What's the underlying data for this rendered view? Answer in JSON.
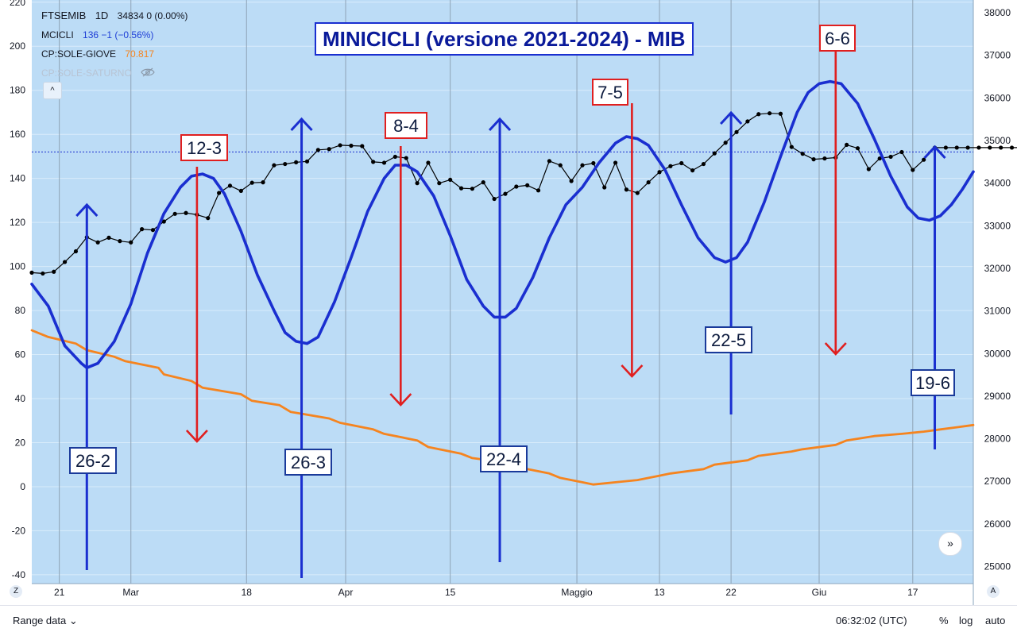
{
  "legend": {
    "symbol": "FTSEMIB",
    "timeframe": "1D",
    "symbol_values": "34834 0 (0.00%)",
    "mcicli_name": "MCICLI",
    "mcicli_values": "136 −1 (−0.56%)",
    "giove_name": "CP:SOLE-GIOVE",
    "giove_value": "70.817",
    "saturno_name": "CP:SOLE-SATURNO",
    "collapse_glyph": "^",
    "eye_icon": "eye-off-icon"
  },
  "title": "MINICICLI (versione 2021-2024) - MIB",
  "colors": {
    "background": "#bcdcf6",
    "blue_cycle": "#1a2fd0",
    "orange": "#f5841f",
    "price": "#000000",
    "red_arrow": "#e01f1f",
    "blue_arrow": "#1a2fd0"
  },
  "bottom_bar": {
    "range_label": "Range data",
    "time": "06:32:02 (UTC)",
    "percent": "%",
    "log": "log",
    "auto": "auto",
    "scroll_icon": "double-chevron-right-icon",
    "z_label": "Z",
    "a_label": "A"
  },
  "chart_data": {
    "type": "line",
    "title": "MINICICLI (versione 2021-2024) - MIB",
    "x_tick_labels": [
      "21",
      "Mar",
      "18",
      "Apr",
      "15",
      "Maggio",
      "13",
      "22",
      "Giu",
      "17"
    ],
    "left_axis": {
      "ticks": [
        -40,
        -20,
        0,
        20,
        40,
        60,
        80,
        100,
        120,
        140,
        160,
        180,
        200,
        220
      ],
      "ylim": [
        -44,
        221
      ]
    },
    "right_axis": {
      "ticks": [
        25000,
        26000,
        27000,
        28000,
        29000,
        30000,
        31000,
        32000,
        33000,
        34000,
        35000,
        36000,
        37000,
        38000
      ],
      "ylim": [
        24600,
        38300
      ]
    },
    "last_price_level": 152,
    "series": [
      {
        "name": "MCICLI",
        "axis": "left",
        "color": "#1a2fd0",
        "points": [
          [
            0,
            92
          ],
          [
            3,
            82
          ],
          [
            6,
            64
          ],
          [
            9,
            56
          ],
          [
            10,
            54
          ],
          [
            12,
            56
          ],
          [
            15,
            66
          ],
          [
            18,
            83
          ],
          [
            21,
            106
          ],
          [
            24,
            124
          ],
          [
            27,
            136
          ],
          [
            29,
            141
          ],
          [
            31,
            142
          ],
          [
            33,
            140
          ],
          [
            35,
            133
          ],
          [
            38,
            116
          ],
          [
            41,
            96
          ],
          [
            44,
            80
          ],
          [
            46,
            70
          ],
          [
            48,
            66
          ],
          [
            50,
            65
          ],
          [
            52,
            68
          ],
          [
            55,
            84
          ],
          [
            58,
            104
          ],
          [
            61,
            125
          ],
          [
            64,
            140
          ],
          [
            66,
            146
          ],
          [
            68,
            146
          ],
          [
            70,
            143
          ],
          [
            73,
            132
          ],
          [
            76,
            114
          ],
          [
            79,
            94
          ],
          [
            82,
            82
          ],
          [
            84,
            77
          ],
          [
            86,
            77
          ],
          [
            88,
            81
          ],
          [
            91,
            95
          ],
          [
            94,
            113
          ],
          [
            97,
            128
          ],
          [
            100,
            136
          ],
          [
            103,
            147
          ],
          [
            106,
            156
          ],
          [
            108,
            159
          ],
          [
            110,
            158
          ],
          [
            112,
            155
          ],
          [
            115,
            144
          ],
          [
            118,
            128
          ],
          [
            121,
            113
          ],
          [
            124,
            104
          ],
          [
            126,
            102
          ],
          [
            128,
            104
          ],
          [
            130,
            111
          ],
          [
            133,
            129
          ],
          [
            136,
            150
          ],
          [
            139,
            170
          ],
          [
            141,
            179
          ],
          [
            143,
            183
          ],
          [
            145,
            184
          ],
          [
            147,
            183
          ],
          [
            150,
            174
          ],
          [
            153,
            158
          ],
          [
            156,
            141
          ],
          [
            159,
            127
          ],
          [
            161,
            122
          ],
          [
            163,
            121
          ],
          [
            165,
            123
          ],
          [
            167,
            128
          ],
          [
            169,
            135
          ],
          [
            171,
            143
          ]
        ]
      },
      {
        "name": "CP:SOLE-GIOVE",
        "axis": "left",
        "color": "#f5841f",
        "points": [
          [
            0,
            71
          ],
          [
            3,
            68
          ],
          [
            8,
            65
          ],
          [
            10,
            62
          ],
          [
            15,
            59
          ],
          [
            17,
            57
          ],
          [
            23,
            54
          ],
          [
            24,
            51
          ],
          [
            29,
            48
          ],
          [
            31,
            45
          ],
          [
            38,
            42
          ],
          [
            40,
            39
          ],
          [
            45,
            37
          ],
          [
            47,
            34
          ],
          [
            54,
            31
          ],
          [
            56,
            29
          ],
          [
            62,
            26
          ],
          [
            64,
            24
          ],
          [
            70,
            21
          ],
          [
            72,
            18
          ],
          [
            78,
            15
          ],
          [
            80,
            13
          ],
          [
            86,
            11
          ],
          [
            88,
            9
          ],
          [
            94,
            6
          ],
          [
            96,
            4
          ],
          [
            100,
            2
          ],
          [
            102,
            1
          ],
          [
            106,
            2
          ],
          [
            110,
            3
          ],
          [
            114,
            5
          ],
          [
            116,
            6
          ],
          [
            122,
            8
          ],
          [
            124,
            10
          ],
          [
            130,
            12
          ],
          [
            132,
            14
          ],
          [
            138,
            16
          ],
          [
            140,
            17
          ],
          [
            146,
            19
          ],
          [
            148,
            21
          ],
          [
            153,
            23
          ],
          [
            158,
            24
          ],
          [
            162,
            25
          ],
          [
            165,
            26
          ],
          [
            168,
            27
          ],
          [
            171,
            28
          ]
        ]
      },
      {
        "name": "FTSEMIB",
        "axis": "right",
        "color": "#000000",
        "points": [
          [
            0,
            31900
          ],
          [
            2,
            31880
          ],
          [
            4,
            31920
          ],
          [
            6,
            32150
          ],
          [
            8,
            32400
          ],
          [
            10,
            32730
          ],
          [
            12,
            32610
          ],
          [
            14,
            32720
          ],
          [
            16,
            32640
          ],
          [
            18,
            32610
          ],
          [
            20,
            32920
          ],
          [
            22,
            32900
          ],
          [
            24,
            33100
          ],
          [
            26,
            33280
          ],
          [
            28,
            33300
          ],
          [
            30,
            33260
          ],
          [
            32,
            33180
          ],
          [
            34,
            33770
          ],
          [
            36,
            33940
          ],
          [
            38,
            33820
          ],
          [
            40,
            34010
          ],
          [
            42,
            34020
          ],
          [
            44,
            34420
          ],
          [
            46,
            34450
          ],
          [
            48,
            34490
          ],
          [
            50,
            34510
          ],
          [
            52,
            34780
          ],
          [
            54,
            34800
          ],
          [
            56,
            34890
          ],
          [
            58,
            34880
          ],
          [
            60,
            34870
          ],
          [
            62,
            34500
          ],
          [
            64,
            34480
          ],
          [
            66,
            34620
          ],
          [
            68,
            34590
          ],
          [
            70,
            34000
          ],
          [
            72,
            34480
          ],
          [
            74,
            34000
          ],
          [
            76,
            34080
          ],
          [
            78,
            33880
          ],
          [
            80,
            33870
          ],
          [
            82,
            34020
          ],
          [
            84,
            33630
          ],
          [
            86,
            33750
          ],
          [
            88,
            33920
          ],
          [
            90,
            33950
          ],
          [
            92,
            33830
          ],
          [
            94,
            34520
          ],
          [
            96,
            34420
          ],
          [
            98,
            34050
          ],
          [
            100,
            34420
          ],
          [
            102,
            34470
          ],
          [
            104,
            33900
          ],
          [
            106,
            34480
          ],
          [
            108,
            33850
          ],
          [
            110,
            33770
          ],
          [
            112,
            34020
          ],
          [
            114,
            34260
          ],
          [
            116,
            34400
          ],
          [
            118,
            34470
          ],
          [
            120,
            34300
          ],
          [
            122,
            34450
          ],
          [
            124,
            34700
          ],
          [
            126,
            34950
          ],
          [
            128,
            35200
          ],
          [
            130,
            35450
          ],
          [
            132,
            35620
          ],
          [
            134,
            35640
          ],
          [
            136,
            35630
          ],
          [
            138,
            34850
          ],
          [
            140,
            34690
          ],
          [
            142,
            34560
          ],
          [
            144,
            34580
          ],
          [
            146,
            34600
          ],
          [
            148,
            34900
          ],
          [
            150,
            34820
          ],
          [
            152,
            34330
          ],
          [
            154,
            34580
          ],
          [
            156,
            34620
          ],
          [
            158,
            34730
          ],
          [
            160,
            34310
          ],
          [
            162,
            34550
          ],
          [
            164,
            34834
          ],
          [
            166,
            34834
          ],
          [
            168,
            34834
          ],
          [
            170,
            34834
          ],
          [
            172,
            34834
          ],
          [
            174,
            34834
          ],
          [
            176,
            34834
          ],
          [
            178,
            34834
          ],
          [
            180,
            34834
          ],
          [
            182,
            34834
          ],
          [
            184,
            34834
          ]
        ]
      }
    ],
    "annotations": [
      {
        "label": "26-2",
        "type": "minimum",
        "color": "blue",
        "direction": "up",
        "x": 10
      },
      {
        "label": "12-3",
        "type": "maximum",
        "color": "red",
        "direction": "down",
        "x": 30
      },
      {
        "label": "26-3",
        "type": "minimum",
        "color": "blue",
        "direction": "up",
        "x": 49
      },
      {
        "label": "8-4",
        "type": "maximum",
        "color": "red",
        "direction": "down",
        "x": 67
      },
      {
        "label": "22-4",
        "type": "minimum",
        "color": "blue",
        "direction": "up",
        "x": 85
      },
      {
        "label": "7-5",
        "type": "maximum",
        "color": "red",
        "direction": "down",
        "x": 109
      },
      {
        "label": "22-5",
        "type": "minimum",
        "color": "blue",
        "direction": "up",
        "x": 127
      },
      {
        "label": "6-6",
        "type": "maximum",
        "color": "red",
        "direction": "down",
        "x": 146
      },
      {
        "label": "19-6",
        "type": "minimum",
        "color": "blue",
        "direction": "up",
        "x": 164
      }
    ]
  }
}
